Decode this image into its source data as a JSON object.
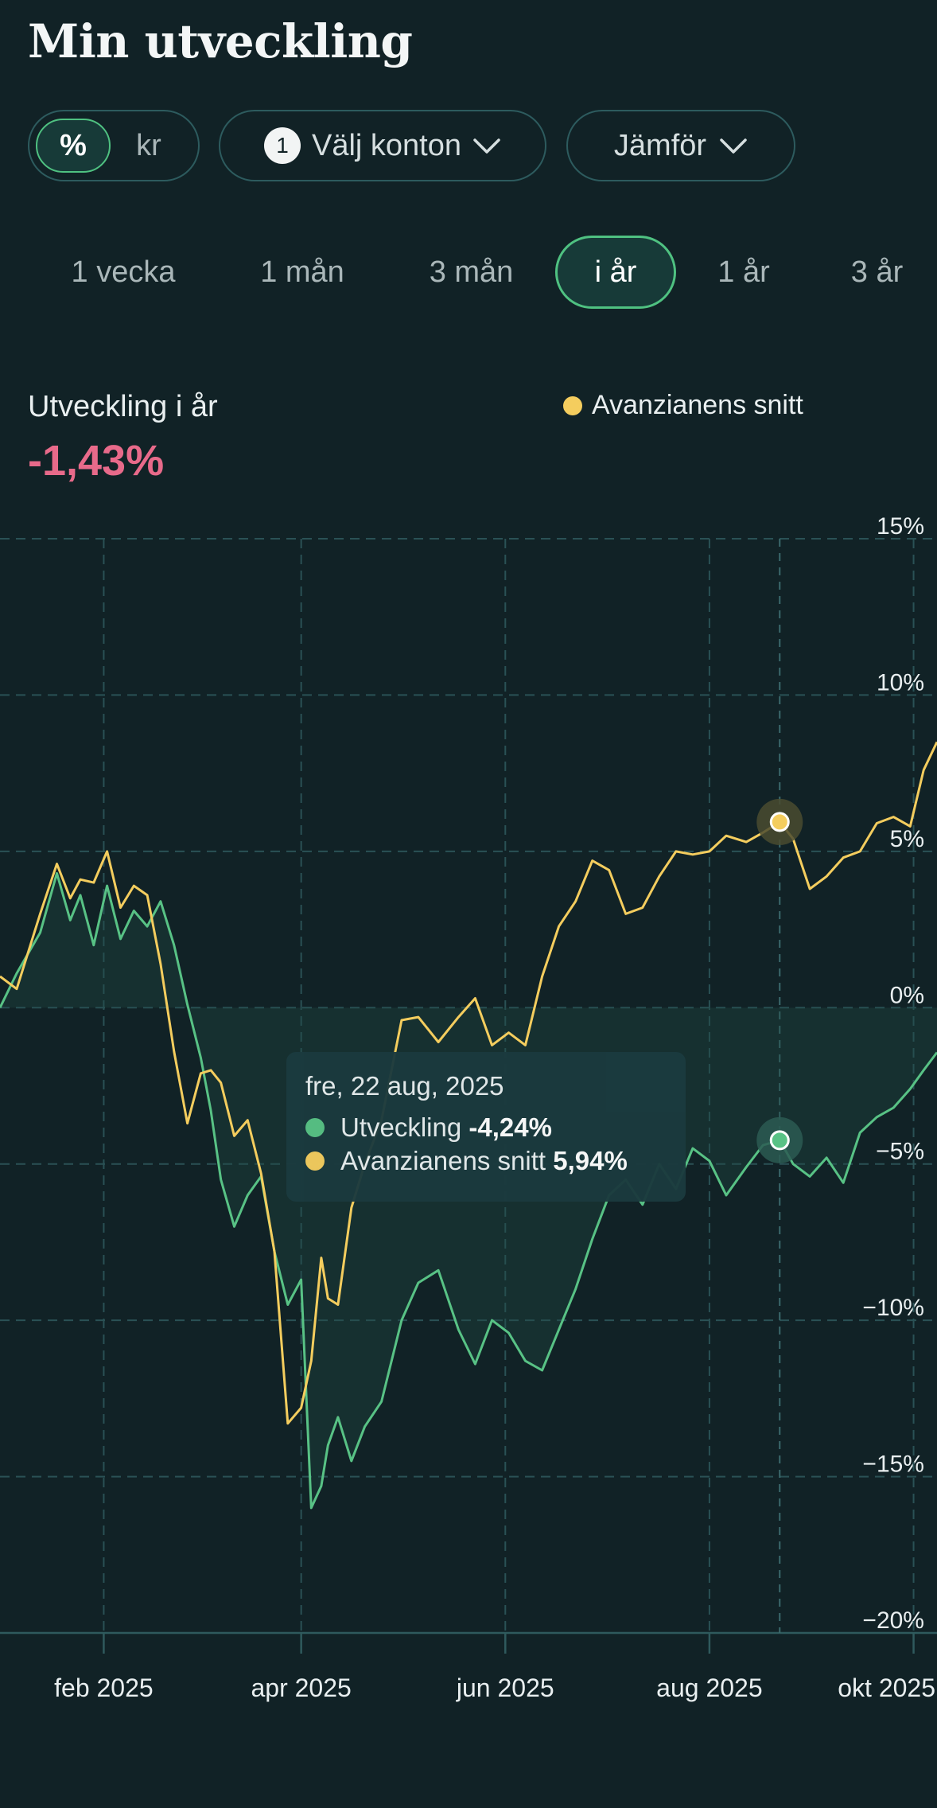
{
  "header": {
    "title": "Min utveckling"
  },
  "toolbar": {
    "unit_options": [
      "%",
      "kr"
    ],
    "accounts_count": "1",
    "accounts_label": "Välj konton",
    "compare_label": "Jämför"
  },
  "periods": [
    "1 vecka",
    "1 mån",
    "3 mån",
    "i år",
    "1 år",
    "3 år"
  ],
  "selected_period": "i år",
  "summary": {
    "label": "Utveckling i år",
    "value": "-1,43%",
    "value_color": "#e86a8a"
  },
  "legend": {
    "label": "Avanzianens snitt",
    "color": "#f4cd5e"
  },
  "tooltip": {
    "date": "fre, 22 aug, 2025",
    "series1_label": "Utveckling",
    "series1_value": "-4,24%",
    "series2_label": "Avanzianens snitt",
    "series2_value": "5,94%"
  },
  "colors": {
    "background": "#112226",
    "utveckling": "#58c285",
    "snitt": "#f4cd5e",
    "accent": "#4fc181"
  },
  "chart_data": {
    "type": "line",
    "y_ticks": [
      "15%",
      "10%",
      "5%",
      "0%",
      "−5%",
      "−10%",
      "−15%",
      "−20%"
    ],
    "y_tick_values": [
      15,
      10,
      5,
      0,
      -5,
      -10,
      -15,
      -20
    ],
    "ylim": [
      -20,
      15
    ],
    "x_ticks": [
      "feb 2025",
      "apr 2025",
      "jun 2025",
      "aug 2025",
      "okt 2025"
    ],
    "x_tick_dates": [
      "2025-02-01",
      "2025-04-01",
      "2025-06-01",
      "2025-08-01",
      "2025-10-01"
    ],
    "xlim": [
      "2025-01-01",
      "2025-10-08"
    ],
    "grid": true,
    "highlighted_date": "2025-08-22",
    "series": [
      {
        "name": "Utveckling",
        "color": "#58c285",
        "x": [
          "2025-01-01",
          "2025-01-06",
          "2025-01-13",
          "2025-01-18",
          "2025-01-22",
          "2025-01-25",
          "2025-01-29",
          "2025-02-02",
          "2025-02-06",
          "2025-02-10",
          "2025-02-14",
          "2025-02-18",
          "2025-02-22",
          "2025-02-26",
          "2025-03-02",
          "2025-03-05",
          "2025-03-08",
          "2025-03-12",
          "2025-03-16",
          "2025-03-20",
          "2025-03-24",
          "2025-03-28",
          "2025-04-01",
          "2025-04-04",
          "2025-04-07",
          "2025-04-09",
          "2025-04-12",
          "2025-04-16",
          "2025-04-20",
          "2025-04-25",
          "2025-05-01",
          "2025-05-06",
          "2025-05-12",
          "2025-05-18",
          "2025-05-23",
          "2025-05-28",
          "2025-06-02",
          "2025-06-07",
          "2025-06-12",
          "2025-06-17",
          "2025-06-22",
          "2025-06-27",
          "2025-07-02",
          "2025-07-07",
          "2025-07-12",
          "2025-07-17",
          "2025-07-22",
          "2025-07-27",
          "2025-08-01",
          "2025-08-06",
          "2025-08-12",
          "2025-08-17",
          "2025-08-22",
          "2025-08-26",
          "2025-08-31",
          "2025-09-05",
          "2025-09-10",
          "2025-09-15",
          "2025-09-20",
          "2025-09-25",
          "2025-09-30",
          "2025-10-04",
          "2025-10-08"
        ],
        "values": [
          0.0,
          1.1,
          2.4,
          4.3,
          2.8,
          3.6,
          2.0,
          3.9,
          2.2,
          3.1,
          2.6,
          3.4,
          2.0,
          0.1,
          -1.6,
          -3.3,
          -5.5,
          -7.0,
          -6.0,
          -5.4,
          -7.8,
          -9.5,
          -8.7,
          -16.0,
          -15.3,
          -14.0,
          -13.1,
          -14.5,
          -13.4,
          -12.6,
          -10.0,
          -8.8,
          -8.4,
          -10.3,
          -11.4,
          -10.0,
          -10.4,
          -11.3,
          -11.6,
          -10.3,
          -9.0,
          -7.4,
          -6.0,
          -5.5,
          -6.3,
          -5.0,
          -5.8,
          -4.5,
          -4.9,
          -6.0,
          -5.1,
          -4.4,
          -4.24,
          -5.0,
          -5.4,
          -4.8,
          -5.6,
          -4.0,
          -3.5,
          -3.2,
          -2.6,
          -2.0,
          -1.43
        ]
      },
      {
        "name": "Avanzianens snitt",
        "color": "#f4cd5e",
        "x": [
          "2025-01-01",
          "2025-01-06",
          "2025-01-13",
          "2025-01-18",
          "2025-01-22",
          "2025-01-25",
          "2025-01-29",
          "2025-02-02",
          "2025-02-06",
          "2025-02-10",
          "2025-02-14",
          "2025-02-18",
          "2025-02-22",
          "2025-02-26",
          "2025-03-02",
          "2025-03-05",
          "2025-03-08",
          "2025-03-12",
          "2025-03-16",
          "2025-03-20",
          "2025-03-24",
          "2025-03-28",
          "2025-04-01",
          "2025-04-04",
          "2025-04-07",
          "2025-04-09",
          "2025-04-12",
          "2025-04-16",
          "2025-04-20",
          "2025-04-25",
          "2025-05-01",
          "2025-05-06",
          "2025-05-12",
          "2025-05-18",
          "2025-05-23",
          "2025-05-28",
          "2025-06-02",
          "2025-06-07",
          "2025-06-12",
          "2025-06-17",
          "2025-06-22",
          "2025-06-27",
          "2025-07-02",
          "2025-07-07",
          "2025-07-12",
          "2025-07-17",
          "2025-07-22",
          "2025-07-27",
          "2025-08-01",
          "2025-08-06",
          "2025-08-12",
          "2025-08-17",
          "2025-08-22",
          "2025-08-26",
          "2025-08-31",
          "2025-09-05",
          "2025-09-10",
          "2025-09-15",
          "2025-09-20",
          "2025-09-25",
          "2025-09-30",
          "2025-10-04",
          "2025-10-08"
        ],
        "values": [
          1.0,
          0.6,
          3.0,
          4.6,
          3.5,
          4.1,
          4.0,
          5.0,
          3.2,
          3.9,
          3.6,
          1.4,
          -1.4,
          -3.7,
          -2.1,
          -2.0,
          -2.4,
          -4.1,
          -3.6,
          -5.3,
          -7.8,
          -13.3,
          -12.8,
          -11.3,
          -8.0,
          -9.3,
          -9.5,
          -6.4,
          -5.0,
          -3.6,
          -0.4,
          -0.3,
          -1.1,
          -0.3,
          0.3,
          -1.2,
          -0.8,
          -1.2,
          1.0,
          2.6,
          3.4,
          4.7,
          4.4,
          3.0,
          3.2,
          4.2,
          5.0,
          4.9,
          5.0,
          5.5,
          5.3,
          5.6,
          5.94,
          5.4,
          3.8,
          4.2,
          4.8,
          5.0,
          5.9,
          6.1,
          5.8,
          7.6,
          8.5
        ]
      }
    ]
  }
}
